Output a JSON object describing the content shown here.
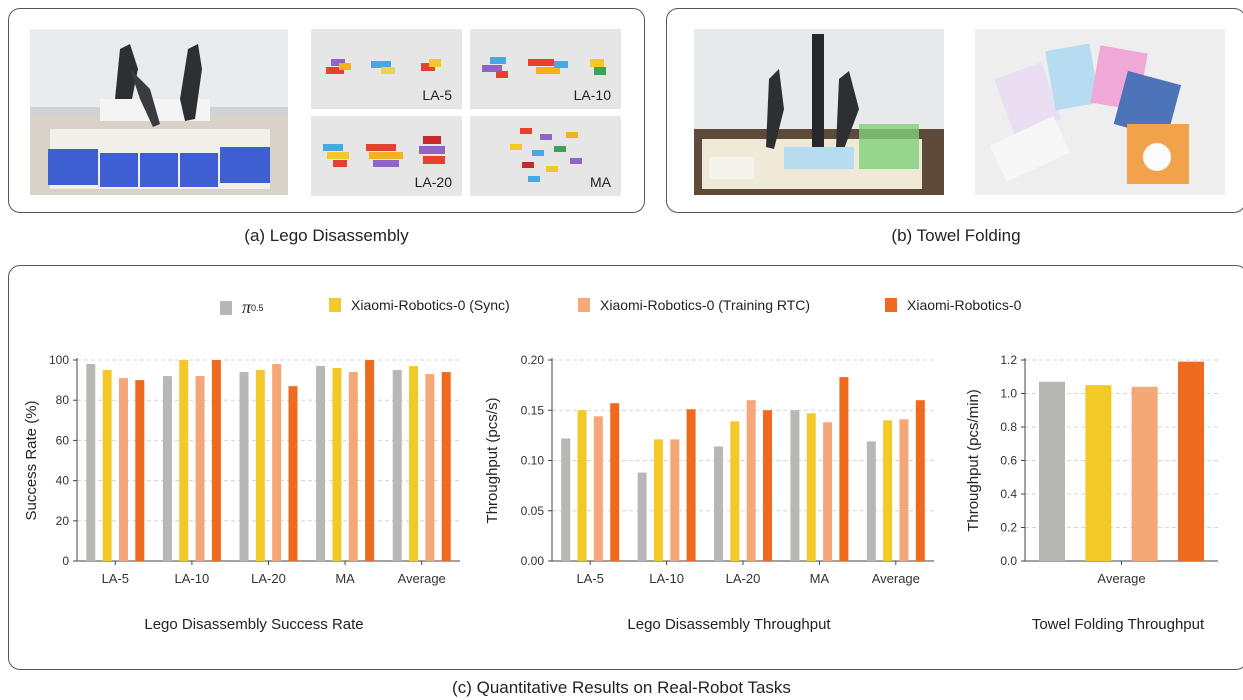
{
  "captions": {
    "a": "(a) Lego Disassembly",
    "b": "(b) Towel Folding",
    "c": "(c) Quantitative Results on Real-Robot Tasks"
  },
  "lego_tiles": [
    "LA-5",
    "LA-10",
    "LA-20",
    "MA"
  ],
  "legend": [
    {
      "label": "π",
      "sub": "0.5",
      "color": "#b7b7b5"
    },
    {
      "label": "Xiaomi-Robotics-0 (Sync)",
      "color": "#f2c927"
    },
    {
      "label": "Xiaomi-Robotics-0 (Training RTC)",
      "color": "#f4a877"
    },
    {
      "label": "Xiaomi-Robotics-0",
      "color": "#ee6a1f"
    }
  ],
  "chart_data": [
    {
      "type": "bar",
      "title": "Lego Disassembly Success Rate",
      "categories": [
        "LA-5",
        "LA-10",
        "LA-20",
        "MA",
        "Average"
      ],
      "ylabel": "Success Rate (%)",
      "ylim": [
        0,
        100
      ],
      "yticks": [
        0,
        20,
        40,
        60,
        80,
        100
      ],
      "series": [
        {
          "name": "π0.5",
          "values": [
            98,
            92,
            94,
            97,
            95
          ]
        },
        {
          "name": "Xiaomi-Robotics-0 (Sync)",
          "values": [
            95,
            100,
            95,
            96,
            97
          ]
        },
        {
          "name": "Xiaomi-Robotics-0 (Training RTC)",
          "values": [
            91,
            92,
            98,
            94,
            93
          ]
        },
        {
          "name": "Xiaomi-Robotics-0",
          "values": [
            90,
            100,
            87,
            100,
            94
          ]
        }
      ]
    },
    {
      "type": "bar",
      "title": "Lego Disassembly Throughput",
      "categories": [
        "LA-5",
        "LA-10",
        "LA-20",
        "MA",
        "Average"
      ],
      "ylabel": "Throughput (pcs/s)",
      "ylim": [
        0,
        0.2
      ],
      "yticks": [
        "0.00",
        "0.05",
        "0.10",
        "0.15",
        "0.20"
      ],
      "series": [
        {
          "name": "π0.5",
          "values": [
            0.122,
            0.088,
            0.114,
            0.15,
            0.119
          ]
        },
        {
          "name": "Xiaomi-Robotics-0 (Sync)",
          "values": [
            0.15,
            0.121,
            0.139,
            0.147,
            0.14
          ]
        },
        {
          "name": "Xiaomi-Robotics-0 (Training RTC)",
          "values": [
            0.144,
            0.121,
            0.16,
            0.138,
            0.141
          ]
        },
        {
          "name": "Xiaomi-Robotics-0",
          "values": [
            0.157,
            0.151,
            0.15,
            0.183,
            0.16
          ]
        }
      ]
    },
    {
      "type": "bar",
      "title": "Towel Folding Throughput",
      "categories": [
        "Average"
      ],
      "ylabel": "Throughput (pcs/min)",
      "ylim": [
        0,
        1.2
      ],
      "yticks": [
        "0.0",
        "0.2",
        "0.4",
        "0.6",
        "0.8",
        "1.0",
        "1.2"
      ],
      "series": [
        {
          "name": "π0.5",
          "values": [
            1.07
          ]
        },
        {
          "name": "Xiaomi-Robotics-0 (Sync)",
          "values": [
            1.05
          ]
        },
        {
          "name": "Xiaomi-Robotics-0 (Training RTC)",
          "values": [
            1.04
          ]
        },
        {
          "name": "Xiaomi-Robotics-0",
          "values": [
            1.19
          ]
        }
      ]
    }
  ]
}
